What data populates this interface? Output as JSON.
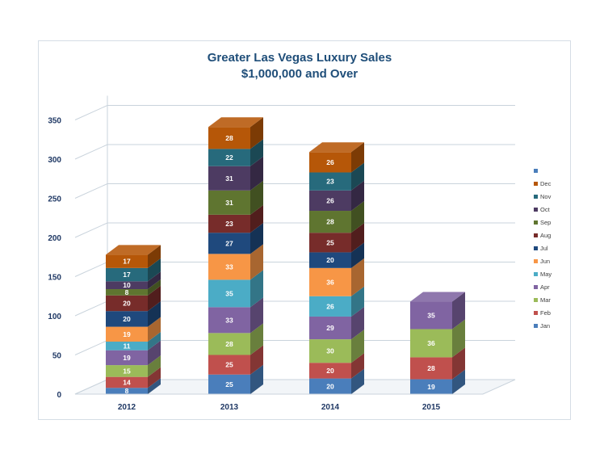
{
  "chart_data": {
    "type": "bar",
    "stacked": true,
    "three_d": true,
    "title": [
      "Greater Las Vegas Luxury Sales",
      "$1,000,000 and Over"
    ],
    "xlabel": "",
    "ylabel": "",
    "ylim": [
      0,
      350
    ],
    "yticks": [
      0,
      50,
      100,
      150,
      200,
      250,
      300,
      350
    ],
    "grid": true,
    "legend_position": "right",
    "categories": [
      "2012",
      "2013",
      "2014",
      "2015"
    ],
    "series": [
      {
        "name": "Jan",
        "color": "#4a7ebb",
        "values": [
          8,
          25,
          20,
          19
        ]
      },
      {
        "name": "Feb",
        "color": "#c0504d",
        "values": [
          14,
          25,
          20,
          28
        ]
      },
      {
        "name": "Mar",
        "color": "#9bbb59",
        "values": [
          15,
          28,
          30,
          36
        ]
      },
      {
        "name": "Apr",
        "color": "#8064a2",
        "values": [
          19,
          33,
          29,
          35
        ]
      },
      {
        "name": "May",
        "color": "#4bacc6",
        "values": [
          11,
          35,
          26,
          null
        ]
      },
      {
        "name": "Jun",
        "color": "#f79646",
        "values": [
          19,
          33,
          36,
          null
        ]
      },
      {
        "name": "Jul",
        "color": "#1f497d",
        "values": [
          20,
          27,
          20,
          null
        ]
      },
      {
        "name": "Aug",
        "color": "#772c2a",
        "values": [
          20,
          23,
          25,
          null
        ]
      },
      {
        "name": "Sep",
        "color": "#5f7530",
        "values": [
          8,
          31,
          28,
          null
        ]
      },
      {
        "name": "Oct",
        "color": "#4d3b62",
        "values": [
          10,
          31,
          26,
          null
        ]
      },
      {
        "name": "Nov",
        "color": "#276a7c",
        "values": [
          17,
          22,
          23,
          null
        ]
      },
      {
        "name": "Dec",
        "color": "#b65708",
        "values": [
          17,
          28,
          26,
          null
        ]
      },
      {
        "name": "",
        "color": "#4a7ebb",
        "values": [
          null,
          null,
          null,
          null
        ]
      }
    ]
  }
}
